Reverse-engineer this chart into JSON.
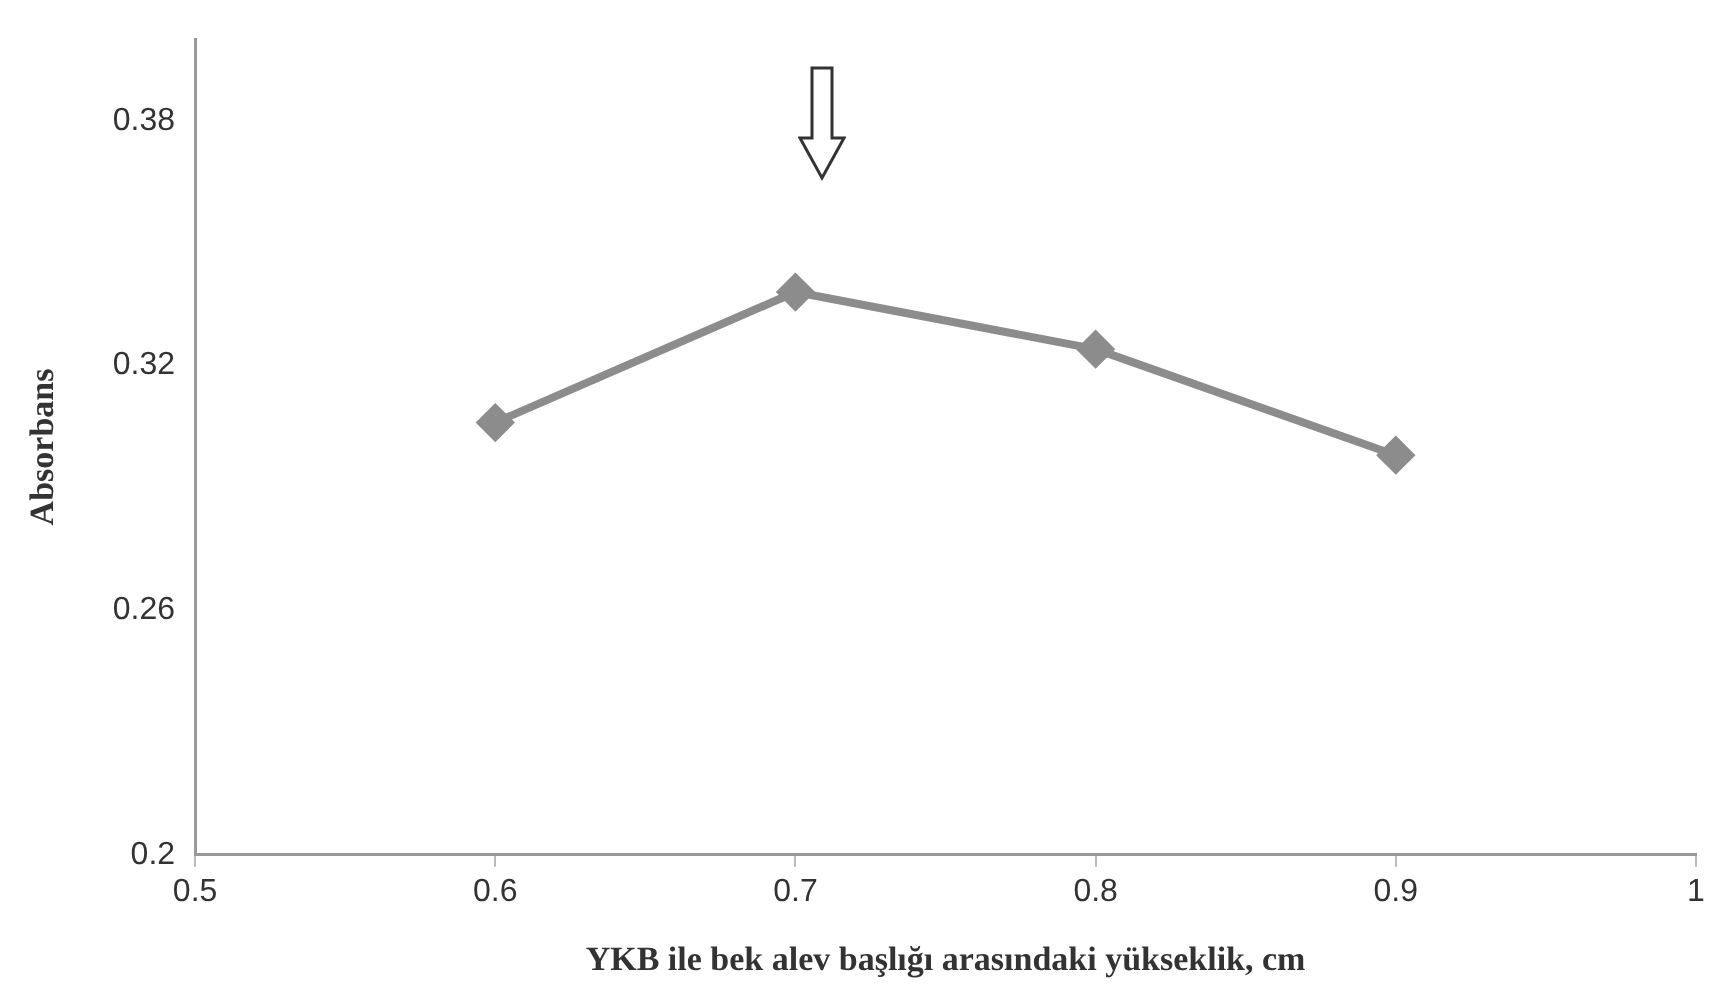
{
  "chart_data": {
    "type": "line",
    "xlabel": "YKB ile bek alev başlığı arasındaki yükseklik, cm",
    "ylabel": "Absorbans",
    "x": [
      0.6,
      0.7,
      0.8,
      0.9
    ],
    "series": [
      {
        "color": "#8c8c8c",
        "values": [
          0.306,
          0.338,
          0.324,
          0.298
        ]
      }
    ],
    "xlim": [
      0.5,
      1
    ],
    "xticks": [
      0.5,
      0.6,
      0.7,
      0.8,
      0.9,
      1
    ],
    "ylim": [
      0.2,
      0.4
    ],
    "yticks": [
      0.2,
      0.26,
      0.32,
      0.38
    ],
    "grid": false,
    "legend": false,
    "marker": "diamond",
    "line_style": "solid"
  }
}
